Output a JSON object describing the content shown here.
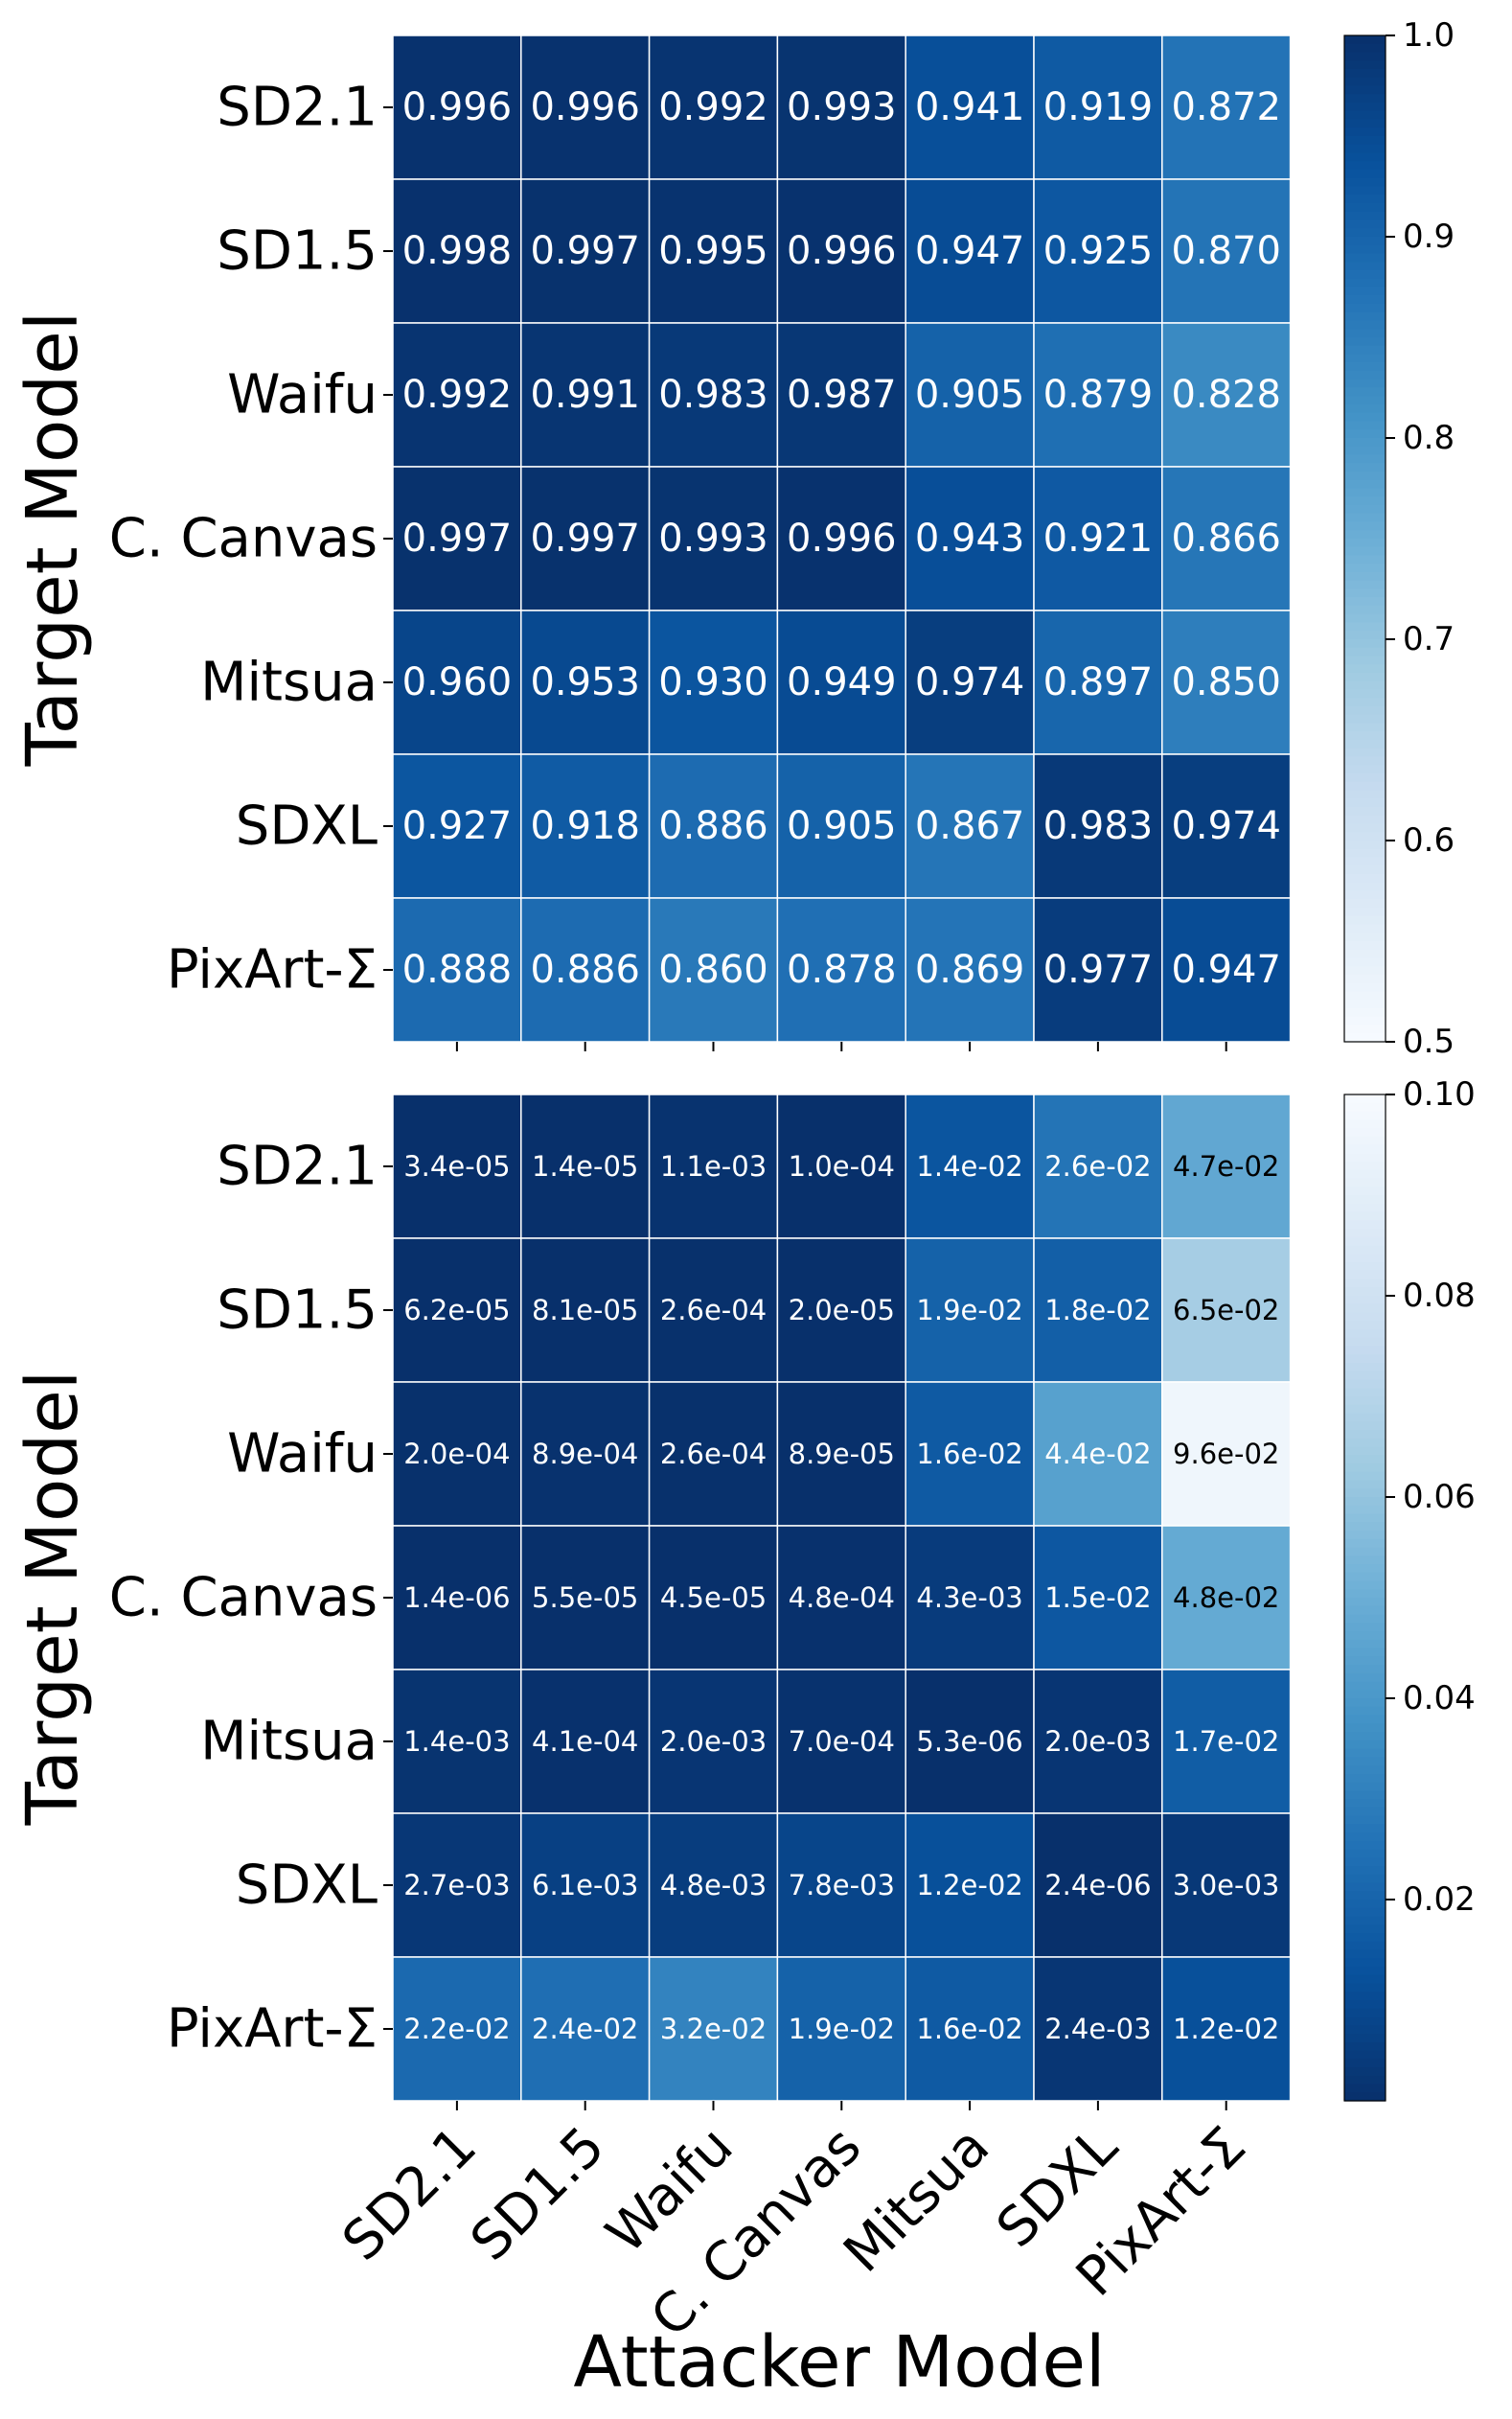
{
  "chart_data": [
    {
      "type": "heatmap",
      "title": "",
      "xlabel": "Attacker Model",
      "ylabel": "Target Model",
      "x_categories": [
        "SD2.1",
        "SD1.5",
        "Waifu",
        "C. Canvas",
        "Mitsua",
        "SDXL",
        "PixArt-Σ"
      ],
      "y_categories": [
        "SD2.1",
        "SD1.5",
        "Waifu",
        "C. Canvas",
        "Mitsua",
        "SDXL",
        "PixArt-Σ"
      ],
      "values": [
        [
          0.996,
          0.996,
          0.992,
          0.993,
          0.941,
          0.919,
          0.872
        ],
        [
          0.998,
          0.997,
          0.995,
          0.996,
          0.947,
          0.925,
          0.87
        ],
        [
          0.992,
          0.991,
          0.983,
          0.987,
          0.905,
          0.879,
          0.828
        ],
        [
          0.997,
          0.997,
          0.993,
          0.996,
          0.943,
          0.921,
          0.866
        ],
        [
          0.96,
          0.953,
          0.93,
          0.949,
          0.974,
          0.897,
          0.85
        ],
        [
          0.927,
          0.918,
          0.886,
          0.905,
          0.867,
          0.983,
          0.974
        ],
        [
          0.888,
          0.886,
          0.86,
          0.878,
          0.869,
          0.977,
          0.947
        ]
      ],
      "labels": [
        [
          "0.996",
          "0.996",
          "0.992",
          "0.993",
          "0.941",
          "0.919",
          "0.872"
        ],
        [
          "0.998",
          "0.997",
          "0.995",
          "0.996",
          "0.947",
          "0.925",
          "0.870"
        ],
        [
          "0.992",
          "0.991",
          "0.983",
          "0.987",
          "0.905",
          "0.879",
          "0.828"
        ],
        [
          "0.997",
          "0.997",
          "0.993",
          "0.996",
          "0.943",
          "0.921",
          "0.866"
        ],
        [
          "0.960",
          "0.953",
          "0.930",
          "0.949",
          "0.974",
          "0.897",
          "0.850"
        ],
        [
          "0.927",
          "0.918",
          "0.886",
          "0.905",
          "0.867",
          "0.983",
          "0.974"
        ],
        [
          "0.888",
          "0.886",
          "0.860",
          "0.878",
          "0.869",
          "0.977",
          "0.947"
        ]
      ],
      "colormap": "Blues",
      "reversed": false,
      "vmin": 0.5,
      "vmax": 1.0,
      "colorbar_ticks": [
        0.5,
        0.6,
        0.7,
        0.8,
        0.9,
        1.0
      ],
      "colorbar_tick_labels": [
        "0.5",
        "0.6",
        "0.7",
        "0.8",
        "0.9",
        "1.0"
      ]
    },
    {
      "type": "heatmap",
      "title": "",
      "xlabel": "Attacker Model",
      "ylabel": "Target Model",
      "x_categories": [
        "SD2.1",
        "SD1.5",
        "Waifu",
        "C. Canvas",
        "Mitsua",
        "SDXL",
        "PixArt-Σ"
      ],
      "y_categories": [
        "SD2.1",
        "SD1.5",
        "Waifu",
        "C. Canvas",
        "Mitsua",
        "SDXL",
        "PixArt-Σ"
      ],
      "values": [
        [
          3.4e-05,
          1.4e-05,
          0.0011,
          0.0001,
          0.014,
          0.026,
          0.047
        ],
        [
          6.2e-05,
          8.1e-05,
          0.00026,
          2e-05,
          0.019,
          0.018,
          0.065
        ],
        [
          0.0002,
          0.00089,
          0.00026,
          8.9e-05,
          0.016,
          0.044,
          0.096
        ],
        [
          1.4e-06,
          5.5e-05,
          4.5e-05,
          0.00048,
          0.0043,
          0.015,
          0.048
        ],
        [
          0.0014,
          0.00041,
          0.002,
          0.0007,
          5.3e-06,
          0.002,
          0.017
        ],
        [
          0.0027,
          0.0061,
          0.0048,
          0.0078,
          0.012,
          2.4e-06,
          0.003
        ],
        [
          0.022,
          0.024,
          0.032,
          0.019,
          0.016,
          0.0024,
          0.012
        ]
      ],
      "labels": [
        [
          "3.4e-05",
          "1.4e-05",
          "1.1e-03",
          "1.0e-04",
          "1.4e-02",
          "2.6e-02",
          "4.7e-02"
        ],
        [
          "6.2e-05",
          "8.1e-05",
          "2.6e-04",
          "2.0e-05",
          "1.9e-02",
          "1.8e-02",
          "6.5e-02"
        ],
        [
          "2.0e-04",
          "8.9e-04",
          "2.6e-04",
          "8.9e-05",
          "1.6e-02",
          "4.4e-02",
          "9.6e-02"
        ],
        [
          "1.4e-06",
          "5.5e-05",
          "4.5e-05",
          "4.8e-04",
          "4.3e-03",
          "1.5e-02",
          "4.8e-02"
        ],
        [
          "1.4e-03",
          "4.1e-04",
          "2.0e-03",
          "7.0e-04",
          "5.3e-06",
          "2.0e-03",
          "1.7e-02"
        ],
        [
          "2.7e-03",
          "6.1e-03",
          "4.8e-03",
          "7.8e-03",
          "1.2e-02",
          "2.4e-06",
          "3.0e-03"
        ],
        [
          "2.2e-02",
          "2.4e-02",
          "3.2e-02",
          "1.9e-02",
          "1.6e-02",
          "2.4e-03",
          "1.2e-02"
        ]
      ],
      "colormap": "Blues",
      "reversed": true,
      "vmin": 0.0,
      "vmax": 0.1,
      "colorbar_ticks": [
        0.02,
        0.04,
        0.06,
        0.08,
        0.1
      ],
      "colorbar_tick_labels": [
        "0.02",
        "0.04",
        "0.06",
        "0.08",
        "0.10"
      ]
    }
  ],
  "shared_xlabel": "Attacker Model"
}
